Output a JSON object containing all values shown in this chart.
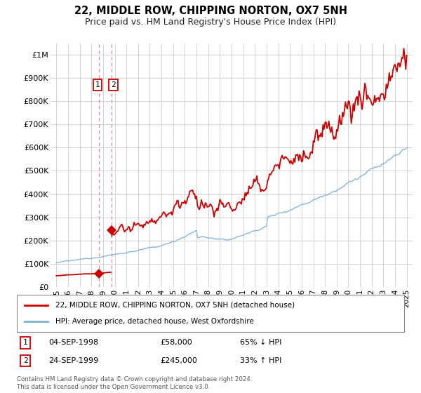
{
  "title": "22, MIDDLE ROW, CHIPPING NORTON, OX7 5NH",
  "subtitle": "Price paid vs. HM Land Registry's House Price Index (HPI)",
  "ylim": [
    0,
    1050000
  ],
  "xlim_start": 1994.5,
  "xlim_end": 2025.5,
  "yticks": [
    0,
    100000,
    200000,
    300000,
    400000,
    500000,
    600000,
    700000,
    800000,
    900000,
    1000000
  ],
  "ytick_labels": [
    "£0",
    "£100K",
    "£200K",
    "£300K",
    "£400K",
    "£500K",
    "£600K",
    "£700K",
    "£800K",
    "£900K",
    "£1M"
  ],
  "xticks": [
    1995,
    1996,
    1997,
    1998,
    1999,
    2000,
    2001,
    2002,
    2003,
    2004,
    2005,
    2006,
    2007,
    2008,
    2009,
    2010,
    2011,
    2012,
    2013,
    2014,
    2015,
    2016,
    2017,
    2018,
    2019,
    2020,
    2021,
    2022,
    2023,
    2024,
    2025
  ],
  "line1_color": "#cc0000",
  "line2_color": "#7ab0d4",
  "vline_color": "#e88888",
  "transaction1_x": 1998.67,
  "transaction1_y": 58000,
  "transaction2_x": 1999.73,
  "transaction2_y": 245000,
  "transaction1_label": "04-SEP-1998",
  "transaction1_price": "£58,000",
  "transaction1_hpi": "65% ↓ HPI",
  "transaction2_label": "24-SEP-1999",
  "transaction2_price": "£245,000",
  "transaction2_hpi": "33% ↑ HPI",
  "legend1_text": "22, MIDDLE ROW, CHIPPING NORTON, OX7 5NH (detached house)",
  "legend2_text": "HPI: Average price, detached house, West Oxfordshire",
  "footnote": "Contains HM Land Registry data © Crown copyright and database right 2024.\nThis data is licensed under the Open Government Licence v3.0.",
  "background_color": "#ffffff",
  "grid_color": "#cccccc"
}
